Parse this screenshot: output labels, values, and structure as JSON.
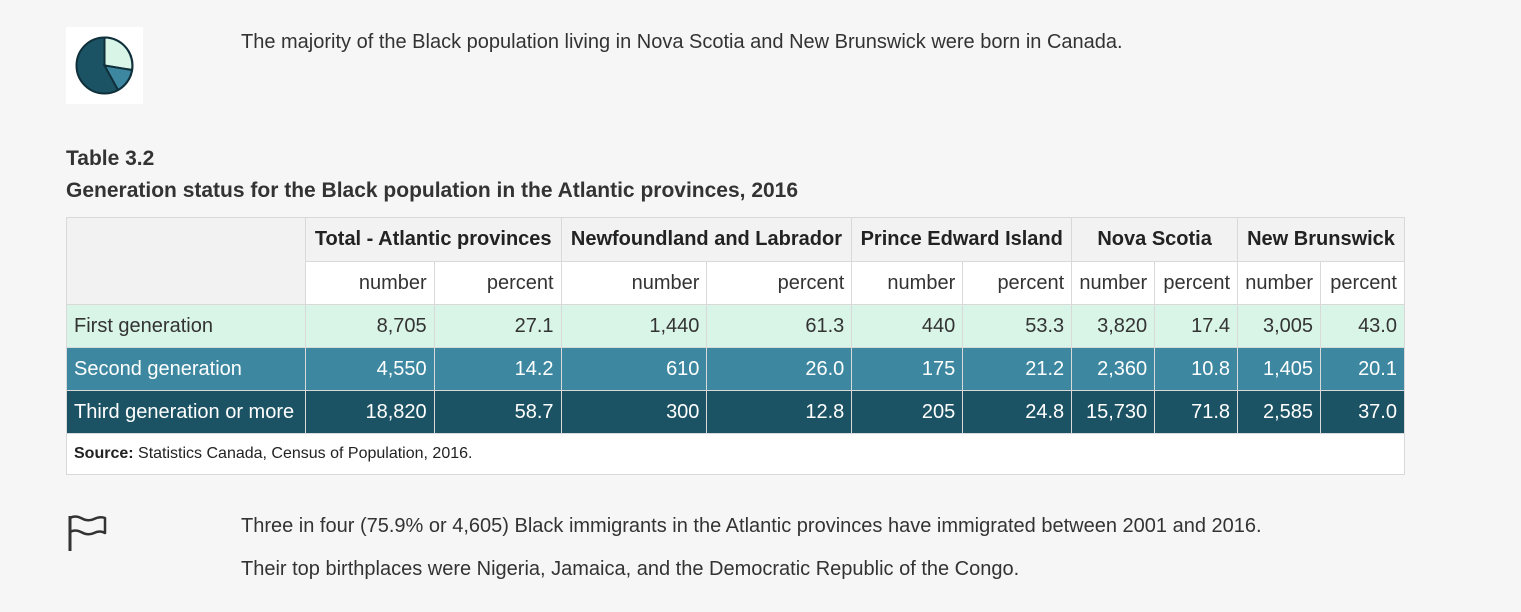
{
  "intro": {
    "icon": "pie-chart-icon",
    "text": "The majority of the Black population living in Nova Scotia and New Brunswick were born in Canada."
  },
  "table": {
    "number": "Table 3.2",
    "title": "Generation status for the Black population in the Atlantic provinces, 2016",
    "regions": [
      "Total - Atlantic provinces",
      "Newfoundland and Labrador",
      "Prince Edward Island",
      "Nova Scotia",
      "New Brunswick"
    ],
    "subheaders": [
      "number",
      "percent"
    ],
    "rows": [
      {
        "label": "First generation",
        "values": [
          "8,705",
          "27.1",
          "1,440",
          "61.3",
          "440",
          "53.3",
          "3,820",
          "17.4",
          "3,005",
          "43.0"
        ]
      },
      {
        "label": "Second generation",
        "values": [
          "4,550",
          "14.2",
          "610",
          "26.0",
          "175",
          "21.2",
          "2,360",
          "10.8",
          "1,405",
          "20.1"
        ]
      },
      {
        "label": "Third generation or more",
        "values": [
          "18,820",
          "58.7",
          "300",
          "12.8",
          "205",
          "24.8",
          "15,730",
          "71.8",
          "2,585",
          "37.0"
        ]
      }
    ],
    "source_label": "Source:",
    "source_text": " Statistics Canada, Census of Population, 2016.",
    "row_colors": [
      "#d9f5e8",
      "#3d88a0",
      "#1c5364"
    ]
  },
  "notes": {
    "icon": "flag-icon",
    "line1": "Three in four (75.9% or 4,605) Black immigrants in the Atlantic provinces have immigrated between 2001 and 2016.",
    "line2": "Their top birthplaces were Nigeria, Jamaica, and the Democratic Republic of the Congo."
  }
}
